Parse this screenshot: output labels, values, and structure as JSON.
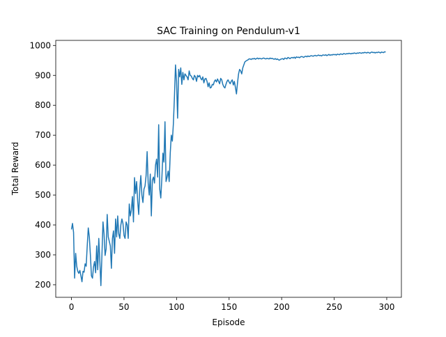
{
  "chart_data": {
    "type": "line",
    "title": "SAC Training on Pendulum-v1",
    "x_label": "Episode",
    "y_label": "Total Reward",
    "x": [
      0,
      1,
      2,
      3,
      4,
      5,
      6,
      7,
      8,
      9,
      10,
      11,
      12,
      13,
      14,
      15,
      16,
      17,
      18,
      19,
      20,
      21,
      22,
      23,
      24,
      25,
      26,
      27,
      28,
      29,
      30,
      31,
      32,
      33,
      34,
      35,
      36,
      37,
      38,
      39,
      40,
      41,
      42,
      43,
      44,
      45,
      46,
      47,
      48,
      49,
      50,
      51,
      52,
      53,
      54,
      55,
      56,
      57,
      58,
      59,
      60,
      61,
      62,
      63,
      64,
      65,
      66,
      67,
      68,
      69,
      70,
      71,
      72,
      73,
      74,
      75,
      76,
      77,
      78,
      79,
      80,
      81,
      82,
      83,
      84,
      85,
      86,
      87,
      88,
      89,
      90,
      91,
      92,
      93,
      94,
      95,
      96,
      97,
      98,
      99,
      100,
      101,
      102,
      103,
      104,
      105,
      106,
      107,
      108,
      109,
      110,
      111,
      112,
      113,
      114,
      115,
      116,
      117,
      118,
      119,
      120,
      121,
      122,
      123,
      124,
      125,
      126,
      127,
      128,
      129,
      130,
      131,
      132,
      133,
      134,
      135,
      136,
      137,
      138,
      139,
      140,
      141,
      142,
      143,
      144,
      145,
      146,
      147,
      148,
      149,
      150,
      151,
      152,
      153,
      154,
      155,
      156,
      157,
      158,
      159,
      160,
      161,
      162,
      163,
      164,
      165,
      166,
      167,
      168,
      169,
      170,
      171,
      172,
      173,
      174,
      175,
      176,
      177,
      178,
      179,
      180,
      181,
      182,
      183,
      184,
      185,
      186,
      187,
      188,
      189,
      190,
      191,
      192,
      193,
      194,
      195,
      196,
      197,
      198,
      199,
      200,
      201,
      202,
      203,
      204,
      205,
      206,
      207,
      208,
      209,
      210,
      211,
      212,
      213,
      214,
      215,
      216,
      217,
      218,
      219,
      220,
      221,
      222,
      223,
      224,
      225,
      226,
      227,
      228,
      229,
      230,
      231,
      232,
      233,
      234,
      235,
      236,
      237,
      238,
      239,
      240,
      241,
      242,
      243,
      244,
      245,
      246,
      247,
      248,
      249,
      250,
      251,
      252,
      253,
      254,
      255,
      256,
      257,
      258,
      259,
      260,
      261,
      262,
      263,
      264,
      265,
      266,
      267,
      268,
      269,
      270,
      271,
      272,
      273,
      274,
      275,
      276,
      277,
      278,
      279,
      280,
      281,
      282,
      283,
      284,
      285,
      286,
      287,
      288,
      289,
      290,
      291,
      292,
      293,
      294,
      295,
      296,
      297,
      298,
      299
    ],
    "series": [
      {
        "color": "#1f77b4",
        "values": [
          385,
          405,
          375,
          222,
          305,
          262,
          245,
          238,
          248,
          230,
          210,
          245,
          242,
          270,
          262,
          330,
          390,
          360,
          300,
          230,
          222,
          260,
          278,
          240,
          330,
          250,
          355,
          280,
          197,
          300,
          410,
          370,
          298,
          320,
          435,
          360,
          345,
          330,
          255,
          355,
          380,
          305,
          420,
          360,
          430,
          370,
          355,
          400,
          420,
          405,
          365,
          355,
          410,
          400,
          355,
          470,
          430,
          450,
          495,
          410,
          558,
          505,
          545,
          480,
          435,
          520,
          565,
          500,
          475,
          520,
          530,
          565,
          645,
          540,
          500,
          570,
          430,
          550,
          560,
          540,
          600,
          620,
          560,
          735,
          520,
          490,
          555,
          640,
          610,
          745,
          545,
          560,
          580,
          545,
          640,
          700,
          680,
          740,
          830,
          935,
          880,
          757,
          920,
          895,
          925,
          870,
          910,
          885,
          905,
          900,
          895,
          885,
          915,
          900,
          898,
          890,
          885,
          900,
          895,
          880,
          900,
          895,
          900,
          890,
          885,
          895,
          875,
          888,
          890,
          880,
          862,
          875,
          858,
          860,
          870,
          868,
          880,
          885,
          878,
          888,
          880,
          872,
          890,
          885,
          870,
          862,
          858,
          870,
          880,
          885,
          878,
          872,
          880,
          885,
          868,
          880,
          860,
          838,
          875,
          905,
          920,
          915,
          905,
          925,
          935,
          945,
          948,
          950,
          952,
          955,
          955,
          953,
          956,
          955,
          957,
          954,
          956,
          958,
          955,
          957,
          956,
          955,
          957,
          958,
          956,
          955,
          957,
          956,
          955,
          958,
          956,
          957,
          955,
          954,
          956,
          953,
          955,
          952,
          951,
          954,
          955,
          956,
          953,
          958,
          957,
          955,
          960,
          958,
          956,
          959,
          960,
          958,
          961,
          957,
          962,
          960,
          961,
          959,
          962,
          963,
          962,
          960,
          963,
          964,
          962,
          965,
          963,
          964,
          966,
          965,
          964,
          966,
          967,
          965,
          966,
          968,
          966,
          967,
          965,
          968,
          968,
          967,
          969,
          966,
          968,
          970,
          967,
          969,
          968,
          970,
          969,
          970,
          968,
          971,
          970,
          969,
          972,
          971,
          970,
          973,
          972,
          971,
          973,
          972,
          974,
          973,
          972,
          974,
          973,
          975,
          974,
          973,
          975,
          974,
          976,
          975,
          974,
          976,
          975,
          977,
          976,
          975,
          977,
          976,
          974,
          977,
          978,
          976,
          977,
          975,
          977,
          976,
          978,
          977,
          975,
          978,
          977,
          976,
          979,
          978
        ]
      }
    ],
    "xlim": [
      -14.95,
      313.95
    ],
    "ylim": [
      158,
      1017
    ],
    "xticks": [
      0,
      50,
      100,
      150,
      200,
      250,
      300
    ],
    "yticks": [
      200,
      300,
      400,
      500,
      600,
      700,
      800,
      900,
      1000
    ]
  }
}
